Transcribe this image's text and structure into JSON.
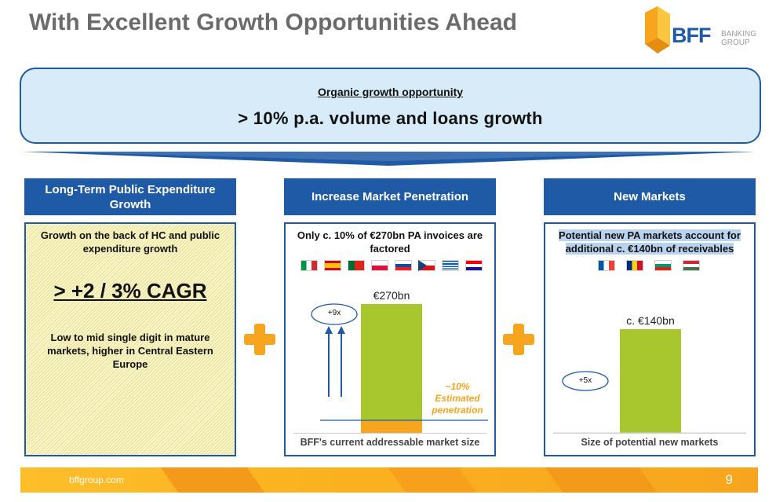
{
  "page": {
    "title": "With Excellent Growth Opportunities Ahead"
  },
  "logo": {
    "name": "BFF",
    "tagline_line1": "BANKING",
    "tagline_line2": "GROUP"
  },
  "banner": {
    "subtitle": "Organic growth opportunity",
    "headline": "> 10% p.a. volume and loans growth"
  },
  "columns": [
    {
      "header": "Long-Term Public Expenditure Growth",
      "intro": "Growth on the back of HC and public expenditure growth",
      "highlight": "> +2 / 3% CAGR",
      "detail": "Low to mid single digit in mature markets, higher in Central Eastern Europe"
    },
    {
      "header": "Increase Market Penetration",
      "intro": "Only c. 10% of €270bn PA invoices are factored",
      "flags": [
        "Italy",
        "Spain",
        "Portugal",
        "Poland",
        "Slovakia",
        "Czech Republic",
        "Greece",
        "Croatia"
      ],
      "bar_label": "€270bn",
      "multiplier": "+9x",
      "annotation_line1": "~10%",
      "annotation_line2": "Estimated",
      "annotation_line3": "penetration",
      "caption": "BFF's current addressable market size"
    },
    {
      "header": "New Markets",
      "intro_line1": "Potential new PA markets account for",
      "intro_line2": "additional c. €140bn of receivables",
      "flags": [
        "France",
        "Romania",
        "Bulgaria",
        "Hungary"
      ],
      "bar_label": "c. €140bn",
      "multiplier": "+5x",
      "caption": "Size of potential new markets"
    }
  ],
  "footer": {
    "website": "bffgroup.com",
    "page_number": "9"
  },
  "colors": {
    "brand_blue": "#1f5aa6",
    "accent_orange": "#f7a51e",
    "bar_green": "#a8c72e",
    "banner_bg": "#d7ebf9"
  }
}
